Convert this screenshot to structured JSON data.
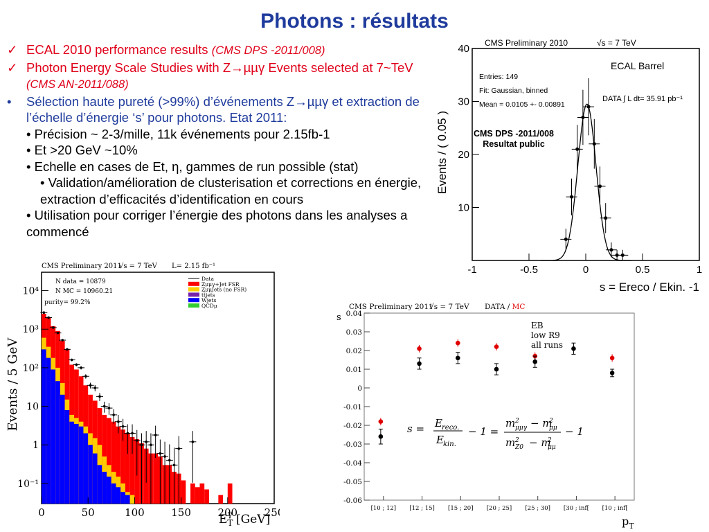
{
  "slide": {
    "title": "Photons : résultats",
    "bullets": [
      {
        "mark": "✓",
        "text": "ECAL 2010 performance results ",
        "ref": "(CMS DPS -2011/008)"
      },
      {
        "mark": "✓",
        "text": "Photon Energy Scale Studies with Z→µµγ Events selected at 7~TeV ",
        "ref": "(CMS AN-2011/088)"
      },
      {
        "mark": "•",
        "text": "Sélection haute pureté (>99%) d’événements Z→µµγ et extraction de l’échelle d’énergie ‘s’ pour photons. Etat 2011:"
      }
    ],
    "subbullets": [
      "• Précision ~ 2-3/mille, 11k événements pour 2.15fb-1",
      "• Et >20 GeV ~10%",
      "• Echelle en cases de Et, η, gammes de run possible (stat)",
      "• Validation/amélioration de clusterisation et corrections en énergie, extraction d’efficacités d’identification en cours",
      "• Utilisation pour corriger l’énergie des photons dans les analyses a commencé"
    ],
    "overlay": "CMS DPS -2011/008\nResultat public",
    "colors": {
      "title": "#1f3b9c",
      "red": "#e0001a"
    }
  },
  "chart_data": [
    {
      "type": "scatter",
      "header": "CMS Preliminary 2010",
      "energy": "√s = 7 TeV",
      "tag": "ECAL Barrel",
      "stats": [
        "Entries: 149",
        "Fit: Gaussian, binned",
        "Mean = 0.0105 +- 0.00891"
      ],
      "lumi": "DATA ∫ L dt= 35.91 pb⁻¹",
      "xlabel": "s = Ereco / Ekin. -1",
      "ylabel": "Events / ( 0.05 )",
      "xlim": [
        -1,
        1
      ],
      "ylim": [
        0,
        40
      ],
      "xticks": [
        "-1",
        "-0.5",
        "0",
        "0.5",
        "1"
      ],
      "yticks": [
        "10",
        "20",
        "30",
        "40"
      ],
      "x": [
        -0.175,
        -0.125,
        -0.075,
        -0.025,
        0.025,
        0.075,
        0.125,
        0.175,
        0.225,
        0.275,
        0.325
      ],
      "y": [
        4,
        12,
        21,
        27,
        29,
        22,
        14,
        8,
        2,
        1,
        1
      ],
      "fit": {
        "mean": 0.0105,
        "sigma": 0.08,
        "amp": 29.5
      }
    },
    {
      "type": "bar",
      "header": "CMS Preliminary 2011",
      "energy": "√s = 7 TeV",
      "lumi": "L= 2.15 fb⁻¹",
      "stats": [
        "N data = 10879",
        "N MC = 10960.21",
        "purity= 99.2%"
      ],
      "xlabel": "E T γ [GeV]",
      "ylabel": "Events / 5 GeV",
      "xlim": [
        0,
        250
      ],
      "ylog": [
        0.03,
        30000
      ],
      "xticks": [
        "0",
        "50",
        "100",
        "150",
        "200",
        "250"
      ],
      "yticks": [
        "10⁻¹",
        "1",
        "10",
        "10²",
        "10³",
        "10⁴"
      ],
      "legend": [
        "Data",
        "Zμμγ+Jet FSR",
        "ZμμJets (no FSR)",
        "tt̄jets",
        "Wjets",
        "QCDμ"
      ],
      "series": [
        {
          "name": "Zμμγ+Jet FSR",
          "color": "#ff0000"
        },
        {
          "name": "ZμμJets (no FSR)",
          "color": "#ffcc00"
        },
        {
          "name": "Wjets",
          "color": "#0000ff"
        },
        {
          "name": "QCDμ",
          "color": "#33cc33"
        }
      ],
      "bins_total": [
        2500,
        2000,
        1200,
        900,
        500,
        300,
        120,
        90,
        60,
        35,
        20,
        14,
        9,
        6,
        5,
        4,
        3,
        2.5,
        2,
        1.6,
        1.4,
        1.1,
        0.8,
        0.6,
        0.6,
        0.5,
        0.3,
        0.3,
        0.2,
        0.18,
        0.12,
        0,
        0.1,
        0.08,
        0.1,
        0.07,
        0,
        0,
        0.05,
        0,
        0.1
      ],
      "bins_yellow": [
        600,
        350,
        180,
        100,
        40,
        15,
        6,
        5,
        4,
        3,
        2,
        1.5,
        1,
        0.5,
        0.3,
        0.2,
        0.15,
        0.1,
        0.06,
        0.05,
        0,
        0,
        0,
        0,
        0,
        0,
        0,
        0,
        0,
        0,
        0,
        0,
        0,
        0,
        0,
        0,
        0,
        0,
        0,
        0,
        0
      ],
      "bins_blue": [
        300,
        180,
        90,
        45,
        20,
        8,
        4,
        3.5,
        3,
        2,
        1,
        0.6,
        0.3,
        0.2,
        0.15,
        0.1,
        0.08,
        0.06,
        0.05,
        0,
        0,
        0,
        0,
        0,
        0,
        0,
        0,
        0,
        0,
        0,
        0,
        0,
        0,
        0,
        0,
        0,
        0,
        0,
        0,
        0,
        0
      ],
      "data_points": [
        [
          2.5,
          2700
        ],
        [
          7.5,
          2000
        ],
        [
          12.5,
          1100
        ],
        [
          17.5,
          800
        ],
        [
          22.5,
          520
        ],
        [
          27.5,
          300
        ],
        [
          32.5,
          160
        ],
        [
          37.5,
          120
        ],
        [
          42.5,
          100
        ],
        [
          47.5,
          60
        ],
        [
          52.5,
          35
        ],
        [
          57.5,
          30
        ],
        [
          62.5,
          18
        ],
        [
          67.5,
          10
        ],
        [
          72.5,
          9
        ],
        [
          77.5,
          6
        ],
        [
          82.5,
          4
        ],
        [
          87.5,
          3
        ],
        [
          92.5,
          2
        ],
        [
          97.5,
          2
        ],
        [
          102.5,
          1.3
        ],
        [
          107.5,
          1
        ],
        [
          112.5,
          1.2
        ],
        [
          117.5,
          1
        ],
        [
          122.5,
          1.8
        ],
        [
          127.5,
          0.6
        ],
        [
          132.5,
          0.5
        ],
        [
          137.5,
          0.4
        ],
        [
          142.5,
          0.3
        ],
        [
          147.5,
          0.8
        ],
        [
          162.5,
          1.2
        ]
      ]
    },
    {
      "type": "scatter",
      "header": "CMS Preliminary 2011",
      "energy": "√s = 7 TeV",
      "data_tag": "DATA / ",
      "mc_tag": "MC",
      "annot": [
        "EB",
        "low R9",
        "all runs"
      ],
      "ylabel": "s",
      "xlabel": "p T",
      "formula": "s = Ereco./Ekin. − 1 = (m²μμγ − m²μμ)/(m²Z0 − m²μμ) − 1",
      "categories": [
        "[10 ; 12]",
        "[12 ; 15]",
        "[15 ; 20]",
        "[20 ; 25]",
        "[25 ; 30]",
        "[30 ; inf[",
        "[10 ; inf["
      ],
      "ylim": [
        -0.06,
        0.04
      ],
      "yticks": [
        "0.04",
        "0.03",
        "0.02",
        "0.01",
        "0",
        "-0.01",
        "-0.02",
        "-0.03",
        "-0.04",
        "-0.05",
        "-0.06"
      ],
      "series": [
        {
          "name": "DATA",
          "color": "#000000",
          "values": [
            -0.026,
            0.013,
            0.016,
            0.01,
            0.014,
            0.021,
            0.008
          ],
          "errors": [
            0.004,
            0.003,
            0.003,
            0.003,
            0.003,
            0.003,
            0.002
          ]
        },
        {
          "name": "MC",
          "color": "#e00000",
          "values": [
            -0.018,
            0.021,
            0.024,
            0.022,
            0.017,
            null,
            0.016
          ]
        }
      ]
    }
  ]
}
